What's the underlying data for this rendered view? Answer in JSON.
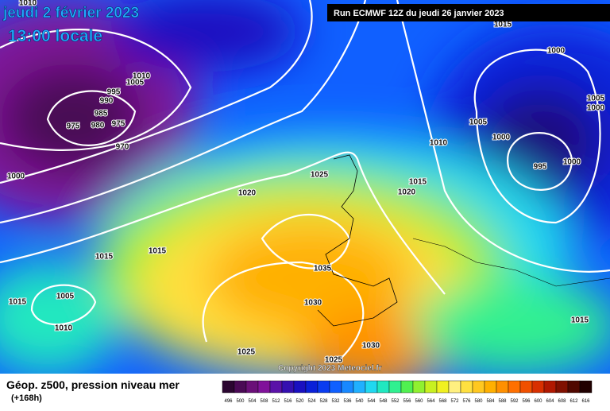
{
  "header": {
    "date": "jeudi 2 février 2023",
    "time": "13:00 locale",
    "run": "Run ECMWF 12Z du jeudi 26 janvier 2023"
  },
  "isobar_labels": [
    1010,
    1010,
    1005,
    995,
    990,
    985,
    975,
    980,
    975,
    970,
    1000,
    1020,
    1025,
    1020,
    1015,
    1010,
    1005,
    1000,
    995,
    1000,
    1000,
    1015,
    1005,
    1000,
    1015,
    1015,
    1015,
    1005,
    1010,
    1035,
    1030,
    1025,
    1025,
    1030,
    1015
  ],
  "footer": {
    "title": "Géop. z500, pression niveau mer",
    "lead": "(+168h)",
    "copyright": "Copyright 2023 Meteociel.fr"
  },
  "scale": {
    "labels": [
      496,
      500,
      504,
      508,
      512,
      516,
      520,
      524,
      528,
      532,
      536,
      540,
      544,
      548,
      552,
      556,
      560,
      564,
      568,
      572,
      576,
      580,
      584,
      588,
      592,
      596,
      600,
      604,
      608,
      612,
      616
    ],
    "colors": [
      "#2b0630",
      "#4a0a55",
      "#6a0f78",
      "#80129a",
      "#5a12a8",
      "#3510b0",
      "#1a10c0",
      "#0a20d8",
      "#0a3cf0",
      "#1060ff",
      "#1888ff",
      "#20b0ff",
      "#20d8f0",
      "#20e8c0",
      "#30f090",
      "#50f050",
      "#90f030",
      "#c8f020",
      "#f0f020",
      "#fff080",
      "#ffe040",
      "#ffc820",
      "#ffb000",
      "#ff9000",
      "#ff7000",
      "#f05000",
      "#d83000",
      "#b01800",
      "#801000",
      "#500800",
      "#200000"
    ]
  }
}
